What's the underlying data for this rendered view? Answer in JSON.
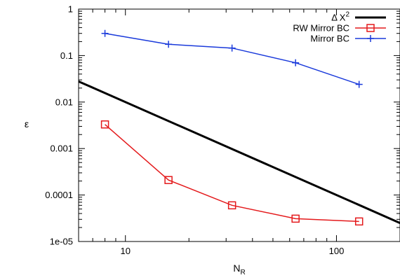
{
  "chart_data": {
    "type": "line",
    "title": "",
    "xlabel_main": "N",
    "xlabel_sub": "R",
    "ylabel": "ε",
    "xscale": "log",
    "yscale": "log",
    "xlim": [
      6,
      200
    ],
    "ylim": [
      1e-05,
      1
    ],
    "grid": false,
    "legend_position": "top-right",
    "xticks": [
      {
        "value": 10,
        "label": "10"
      },
      {
        "value": 100,
        "label": "100"
      }
    ],
    "yticks": [
      {
        "value": 1e-05,
        "label": "1e-05"
      },
      {
        "value": 0.0001,
        "label": "0.0001"
      },
      {
        "value": 0.001,
        "label": "0.001"
      },
      {
        "value": 0.01,
        "label": "0.01"
      },
      {
        "value": 0.1,
        "label": "0.1"
      },
      {
        "value": 1,
        "label": "1"
      }
    ],
    "series": [
      {
        "name_main": "Δ X",
        "name_sup": "2",
        "color": "#000000",
        "marker": "none",
        "width": 3,
        "x": [
          6,
          200
        ],
        "y": [
          0.0278,
          2.5e-05
        ]
      },
      {
        "name_main": "RW Mirror BC",
        "name_sup": "",
        "color": "#e41a1c",
        "marker": "square",
        "width": 1.5,
        "x": [
          8,
          16,
          32,
          64,
          128
        ],
        "y": [
          0.0033,
          0.00021,
          6e-05,
          3.1e-05,
          2.7e-05
        ]
      },
      {
        "name_main": "Mirror BC",
        "name_sup": "",
        "color": "#1a3adb",
        "marker": "plus",
        "width": 1.5,
        "x": [
          8,
          16,
          32,
          64,
          128
        ],
        "y": [
          0.3,
          0.175,
          0.145,
          0.07,
          0.024
        ]
      }
    ]
  }
}
